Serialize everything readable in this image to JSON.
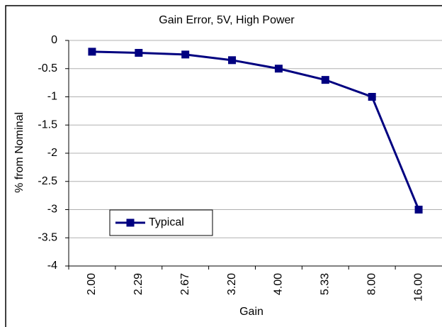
{
  "chart_data": {
    "type": "line",
    "title": "Gain Error, 5V, High Power",
    "xlabel": "Gain",
    "ylabel": "% from Nominal",
    "categories": [
      "2.00",
      "2.29",
      "2.67",
      "3.20",
      "4.00",
      "5.33",
      "8.00",
      "16.00"
    ],
    "series": [
      {
        "name": "Typical",
        "color": "#000080",
        "values": [
          -0.2,
          -0.22,
          -0.25,
          -0.35,
          -0.5,
          -0.7,
          -1.0,
          -3.0
        ]
      }
    ],
    "ylim": [
      -4,
      0
    ],
    "yticks": [
      0,
      -0.5,
      -1,
      -1.5,
      -2,
      -2.5,
      -3,
      -3.5,
      -4
    ],
    "grid": true
  }
}
